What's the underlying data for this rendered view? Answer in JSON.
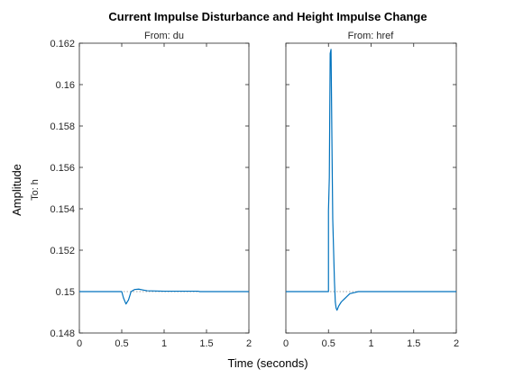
{
  "chart_data": {
    "type": "line",
    "title": "Current Impulse Disturbance and Height Impulse Change",
    "xlabel": "Time (seconds)",
    "ylabel": "Amplitude",
    "row_label": "To: h",
    "xlim": [
      0,
      2
    ],
    "ylim": [
      0.148,
      0.162
    ],
    "x_ticks": [
      0,
      0.5,
      1,
      1.5,
      2
    ],
    "x_tick_labels": [
      "0",
      "0.5",
      "1",
      "1.5",
      "2"
    ],
    "y_ticks": [
      0.148,
      0.15,
      0.152,
      0.154,
      0.156,
      0.158,
      0.16,
      0.162
    ],
    "y_tick_labels": [
      "0.148",
      "0.15",
      "0.152",
      "0.154",
      "0.156",
      "0.158",
      "0.16",
      "0.162"
    ],
    "grid": false,
    "line_color": "#0072BD",
    "reference_line": {
      "y": 0.15,
      "color": "#888888",
      "style": "dotted"
    },
    "panels": [
      {
        "subtitle": "From: du",
        "series": [
          {
            "x": [
              0,
              0.5,
              0.52,
              0.55,
              0.58,
              0.61,
              0.65,
              0.7,
              0.75,
              0.8,
              0.9,
              1.0,
              1.1,
              1.2,
              1.3,
              1.4,
              1.42,
              2.0
            ],
            "y": [
              0.15,
              0.15,
              0.1497,
              0.1494,
              0.1496,
              0.15,
              0.1501,
              0.15012,
              0.15008,
              0.15004,
              0.15003,
              0.15002,
              0.15002,
              0.15002,
              0.15002,
              0.15002,
              0.15,
              0.15
            ]
          }
        ]
      },
      {
        "subtitle": "From: href",
        "series": [
          {
            "x": [
              0,
              0.5,
              0.5,
              0.51,
              0.52,
              0.53,
              0.54,
              0.545,
              0.55,
              0.56,
              0.57,
              0.58,
              0.59,
              0.6,
              0.62,
              0.65,
              0.7,
              0.75,
              0.8,
              0.85,
              0.9,
              1.0,
              2.0
            ],
            "y": [
              0.15,
              0.15,
              0.1539,
              0.1555,
              0.1615,
              0.1617,
              0.1575,
              0.1555,
              0.1535,
              0.152,
              0.1505,
              0.1495,
              0.1492,
              0.1491,
              0.1493,
              0.1495,
              0.1497,
              0.1499,
              0.14995,
              0.15,
              0.15,
              0.15,
              0.15
            ]
          }
        ]
      }
    ]
  }
}
